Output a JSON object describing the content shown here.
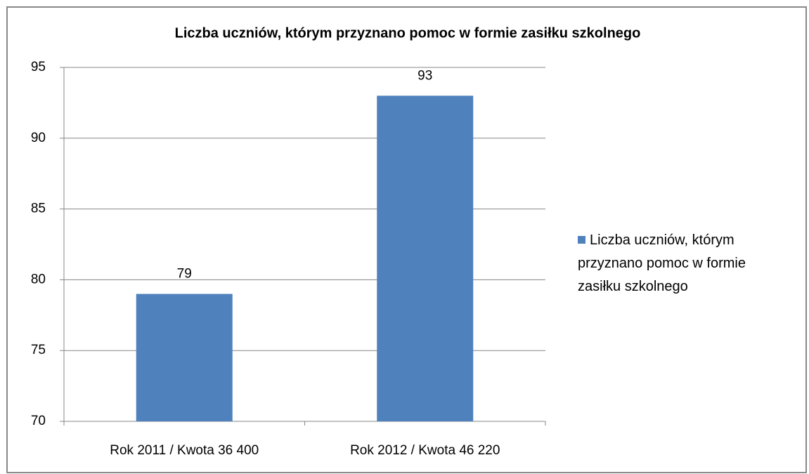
{
  "chart_data": {
    "type": "bar",
    "title": "Liczba uczniów, którym przyznano pomoc w formie zasiłku szkolnego",
    "categories": [
      "Rok 2011 / Kwota 36 400",
      "Rok 2012 / Kwota 46 220"
    ],
    "series": [
      {
        "name": "Liczba uczniów, którym przyznano pomoc w formie zasiłku szkolnego",
        "color": "#4f81bd",
        "values": [
          79,
          93
        ]
      }
    ],
    "ylim": [
      70,
      95
    ],
    "yticks": [
      70,
      75,
      80,
      85,
      90,
      95
    ],
    "grid": true,
    "legend": "right"
  }
}
